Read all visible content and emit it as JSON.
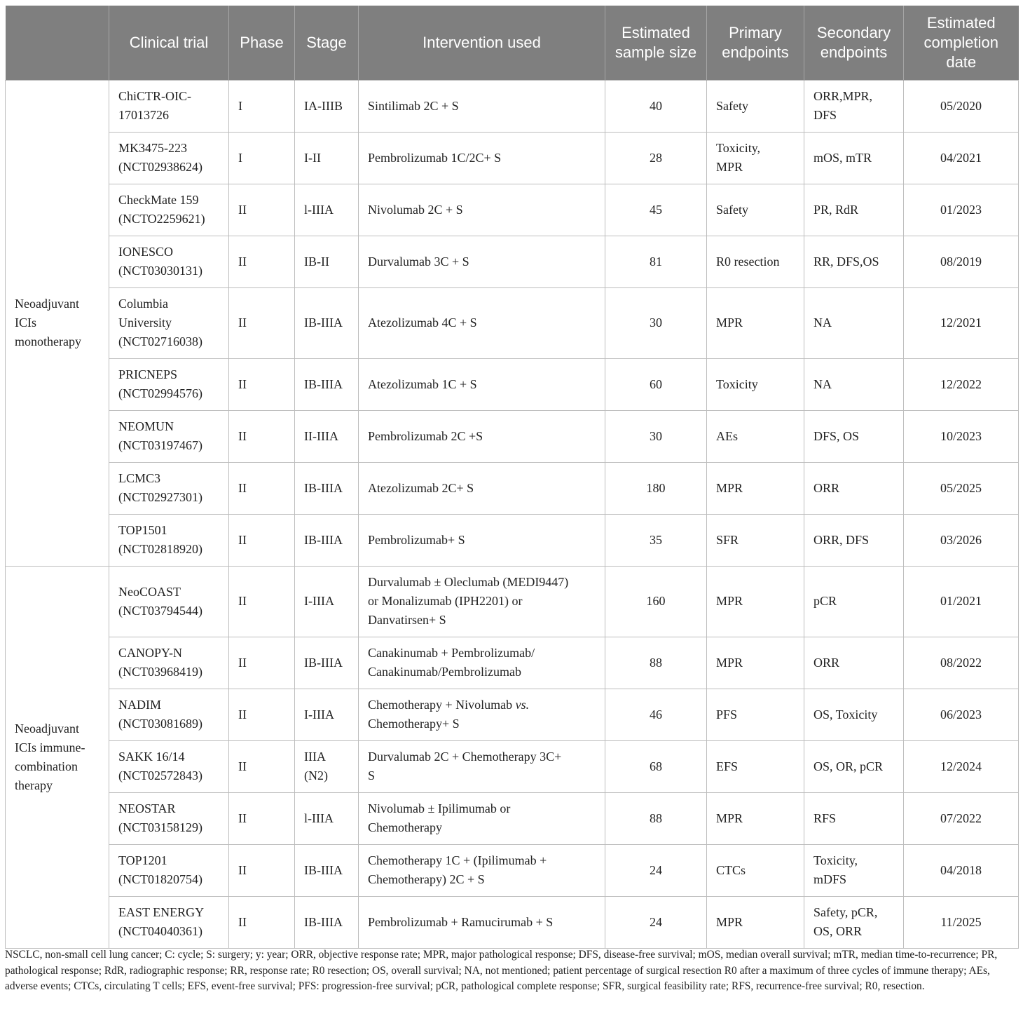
{
  "table": {
    "headers": [
      "",
      "Clinical trial",
      "Phase",
      "Stage",
      "Intervention used",
      "Estimated sample size",
      "Primary endpoints",
      "Secondary endpoints",
      "Estimated completion date"
    ],
    "groups": [
      {
        "label": "Neoadjuvant ICIs monotherapy",
        "rows": [
          {
            "trial": "ChiCTR-OIC-\n17013726",
            "phase": "I",
            "stage": "IA-IIIB",
            "intervention": "Sintilimab 2C + S",
            "sample": "40",
            "primary": "Safety",
            "secondary": "ORR,MPR,\nDFS",
            "completion": "05/2020"
          },
          {
            "trial": "MK3475-223\n(NCT02938624)",
            "phase": "I",
            "stage": "I-II",
            "intervention": "Pembrolizumab 1C/2C+ S",
            "sample": "28",
            "primary": "Toxicity,\nMPR",
            "secondary": "mOS, mTR",
            "completion": "04/2021"
          },
          {
            "trial": "CheckMate 159\n(NCTO2259621)",
            "phase": "II",
            "stage": "l-IIIA",
            "intervention": "Nivolumab 2C + S",
            "sample": "45",
            "primary": "Safety",
            "secondary": "PR, RdR",
            "completion": "01/2023"
          },
          {
            "trial": "IONESCO\n(NCT03030131)",
            "phase": "II",
            "stage": "IB-II",
            "intervention": "Durvalumab 3C + S",
            "sample": "81",
            "primary": "R0 resection",
            "secondary": "RR, DFS,OS",
            "completion": "08/2019"
          },
          {
            "trial": "Columbia\nUniversity\n(NCT02716038)",
            "phase": "II",
            "stage": "IB-IIIA",
            "intervention": "Atezolizumab 4C + S",
            "sample": "30",
            "primary": "MPR",
            "secondary": "NA",
            "completion": "12/2021"
          },
          {
            "trial": "PRICNEPS\n(NCT02994576)",
            "phase": "II",
            "stage": "IB-IIIA",
            "intervention": "Atezolizumab 1C + S",
            "sample": "60",
            "primary": "Toxicity",
            "secondary": "NA",
            "completion": "12/2022"
          },
          {
            "trial": "NEOMUN\n(NCT03197467)",
            "phase": "II",
            "stage": "II-IIIA",
            "intervention": "Pembrolizumab 2C +S",
            "sample": "30",
            "primary": "AEs",
            "secondary": "DFS, OS",
            "completion": "10/2023"
          },
          {
            "trial": "LCMC3\n(NCT02927301)",
            "phase": "II",
            "stage": "IB-IIIA",
            "intervention": "Atezolizumab 2C+ S",
            "sample": "180",
            "primary": "MPR",
            "secondary": "ORR",
            "completion": "05/2025"
          },
          {
            "trial": "TOP1501\n(NCT02818920)",
            "phase": "II",
            "stage": "IB-IIIA",
            "intervention": "Pembrolizumab+ S",
            "sample": "35",
            "primary": "SFR",
            "secondary": "ORR, DFS",
            "completion": "03/2026"
          }
        ]
      },
      {
        "label": "Neoadjuvant ICIs immune-combination therapy",
        "rows": [
          {
            "trial": "NeoCOAST\n(NCT03794544)",
            "phase": "II",
            "stage": "I-IIIA",
            "intervention": "Durvalumab ± Oleclumab (MEDI9447)\nor Monalizumab (IPH2201) or\nDanvatirsen+ S",
            "sample": "160",
            "primary": "MPR",
            "secondary": "pCR",
            "completion": "01/2021"
          },
          {
            "trial": "CANOPY-N\n(NCT03968419)",
            "phase": "II",
            "stage": "IB-IIIA",
            "intervention": "Canakinumab + Pembrolizumab/\nCanakinumab/Pembrolizumab",
            "sample": "88",
            "primary": "MPR",
            "secondary": "ORR",
            "completion": "08/2022"
          },
          {
            "trial": "NADIM\n(NCT03081689)",
            "phase": "II",
            "stage": "I-IIIA",
            "intervention": "Chemotherapy + Nivolumab vs.\nChemotherapy+ S",
            "sample": "46",
            "primary": "PFS",
            "secondary": "OS, Toxicity",
            "completion": "06/2023"
          },
          {
            "trial": "SAKK 16/14\n(NCT02572843)",
            "phase": "II",
            "stage": "IIIA\n(N2)",
            "intervention": "Durvalumab 2C + Chemotherapy 3C+\nS",
            "sample": "68",
            "primary": "EFS",
            "secondary": "OS, OR, pCR",
            "completion": "12/2024"
          },
          {
            "trial": "NEOSTAR\n(NCT03158129)",
            "phase": "II",
            "stage": "l-IIIA",
            "intervention": "Nivolumab ± Ipilimumab or\nChemotherapy",
            "sample": "88",
            "primary": "MPR",
            "secondary": "RFS",
            "completion": "07/2022"
          },
          {
            "trial": "TOP1201\n(NCT01820754)",
            "phase": "II",
            "stage": "IB-IIIA",
            "intervention": "Chemotherapy 1C + (Ipilimumab +\nChemotherapy) 2C + S",
            "sample": "24",
            "primary": "CTCs",
            "secondary": "Toxicity,\nmDFS",
            "completion": "04/2018"
          },
          {
            "trial": "EAST ENERGY\n(NCT04040361)",
            "phase": "II",
            "stage": "IB-IIIA",
            "intervention": "Pembrolizumab + Ramucirumab + S",
            "sample": "24",
            "primary": "MPR",
            "secondary": "Safety, pCR,\nOS, ORR",
            "completion": "11/2025"
          }
        ]
      }
    ]
  },
  "footnote": "NSCLC, non-small cell lung cancer; C: cycle; S: surgery; y: year; ORR, objective response rate; MPR, major pathological response; DFS, disease-free survival; mOS, median overall survival; mTR, median time-to-recurrence; PR, pathological response; RdR, radiographic response; RR, response rate; R0 resection; OS, overall survival; NA, not mentioned; patient percentage of surgical resection R0 after a maximum of three cycles of immune therapy; AEs, adverse events; CTCs, circulating T cells; EFS, event-free survival; PFS: progression-free survival; pCR, pathological complete response; SFR, surgical feasibility rate; RFS, recurrence-free survival; R0, resection."
}
